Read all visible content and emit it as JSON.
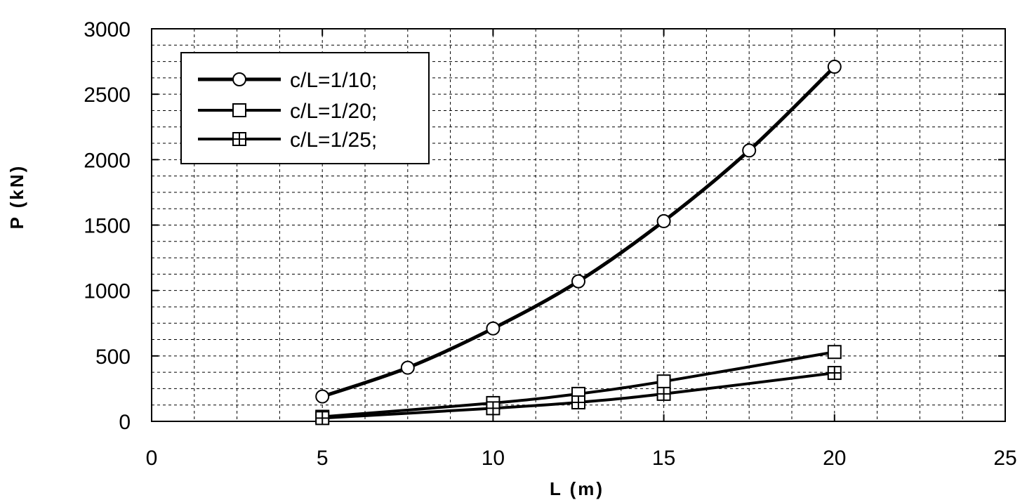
{
  "chart_data": {
    "type": "line",
    "title": "",
    "xlabel": "L (m)",
    "ylabel": "P (kN)",
    "xlim": [
      0,
      25
    ],
    "ylim": [
      0,
      3000
    ],
    "xticks": [
      0,
      5,
      10,
      15,
      20,
      25
    ],
    "yticks": [
      0,
      500,
      1000,
      1500,
      2000,
      2500,
      3000
    ],
    "grid": true,
    "legend_position": "top-left",
    "series": [
      {
        "name": "c/L=1/10;",
        "marker": "circle",
        "x": [
          5,
          7.5,
          10,
          12.5,
          15,
          17.5,
          20
        ],
        "y": [
          190,
          410,
          710,
          1070,
          1530,
          2070,
          2710
        ]
      },
      {
        "name": "c/L=1/20;",
        "marker": "square",
        "x": [
          5,
          10,
          12.5,
          15,
          20
        ],
        "y": [
          35,
          140,
          210,
          305,
          530
        ]
      },
      {
        "name": "c/L=1/25;",
        "marker": "crossed-square",
        "x": [
          5,
          10,
          12.5,
          15,
          20
        ],
        "y": [
          25,
          100,
          145,
          210,
          370
        ]
      }
    ]
  }
}
